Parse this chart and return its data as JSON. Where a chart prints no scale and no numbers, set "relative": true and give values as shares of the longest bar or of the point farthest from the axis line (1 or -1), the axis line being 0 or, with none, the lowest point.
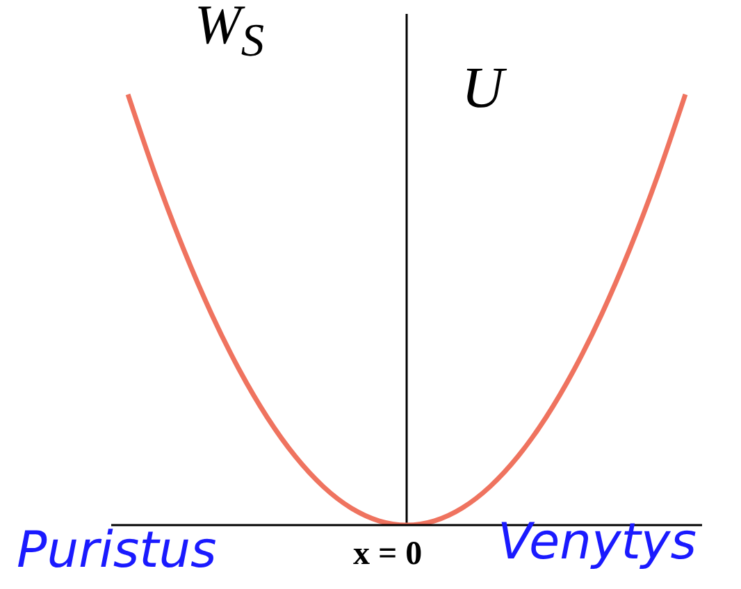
{
  "chart_data": {
    "type": "line",
    "relative": true,
    "ylabel": "U",
    "categories": [
      null,
      null,
      null,
      null,
      null,
      null,
      null,
      null,
      null,
      null,
      null,
      null,
      null,
      null,
      null,
      null,
      null,
      null,
      null,
      null,
      null
    ],
    "series": [
      {
        "color": "#ef735f",
        "values": [
          1,
          0.81,
          0.64,
          0.49,
          0.36,
          0.25,
          0.16,
          0.09,
          0.04,
          0.01,
          0,
          0.01,
          0.04,
          0.09,
          0.16,
          0.25,
          0.36,
          0.49,
          0.64,
          0.81,
          1
        ]
      }
    ],
    "annotations": [
      "W$_{S}$",
      "Puristus",
      "Venytys",
      "x = 0"
    ],
    "marker": "none",
    "line_style": "solid",
    "grid": false,
    "legend": false
  }
}
